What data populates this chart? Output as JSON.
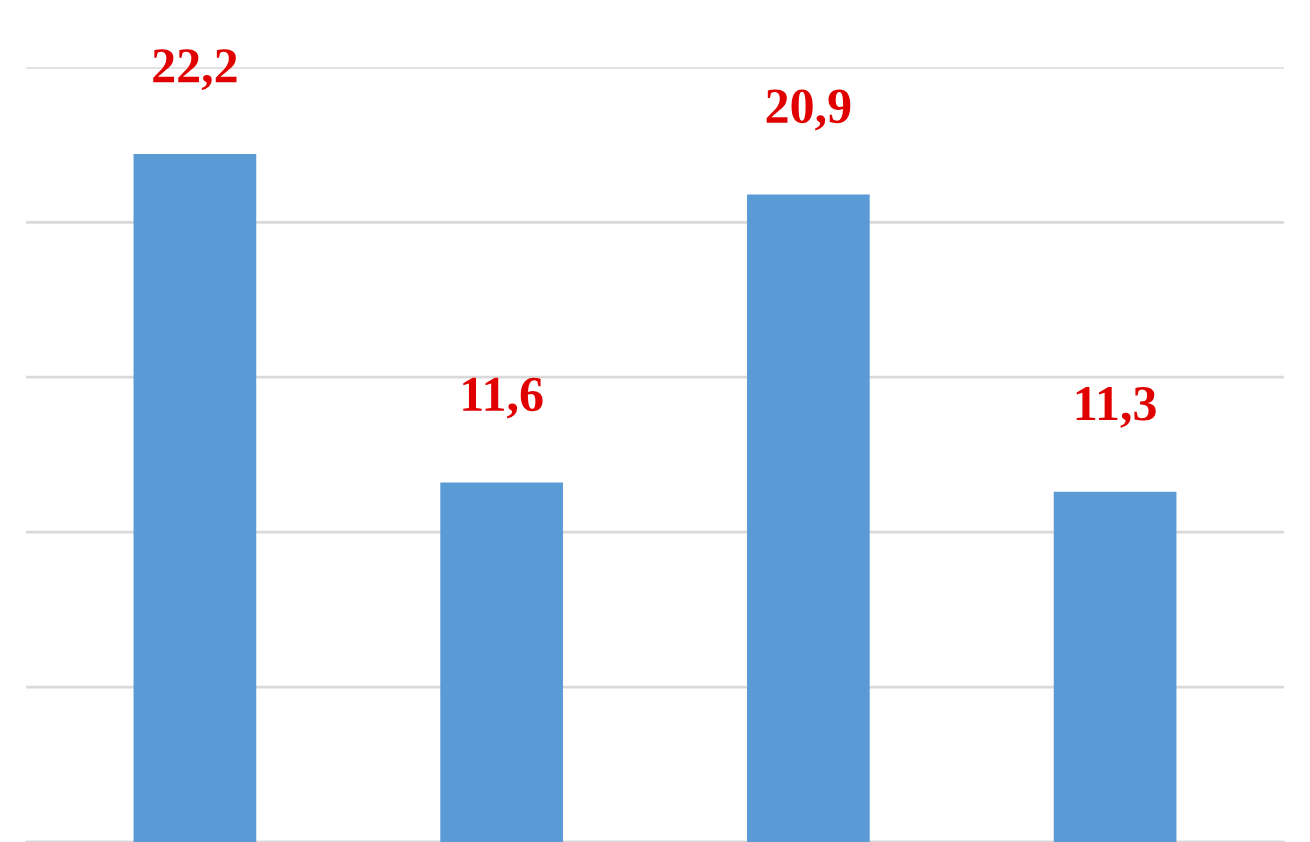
{
  "chart_data": {
    "type": "bar",
    "categories": [
      null,
      null,
      null,
      null
    ],
    "values": [
      22.2,
      11.6,
      20.9,
      11.3
    ],
    "value_labels": [
      "22,2",
      "11,6",
      "20,9",
      "11,3"
    ],
    "color": "#5b9bd5",
    "ylim": [
      0,
      25
    ],
    "yticks": [
      {
        "value": 0,
        "label": null
      },
      {
        "value": 5,
        "label": null
      },
      {
        "value": 10,
        "label": null
      },
      {
        "value": 15,
        "label": null
      },
      {
        "value": 20,
        "label": null
      },
      {
        "value": 25,
        "label": null
      }
    ],
    "grid": "y",
    "legend": false
  }
}
